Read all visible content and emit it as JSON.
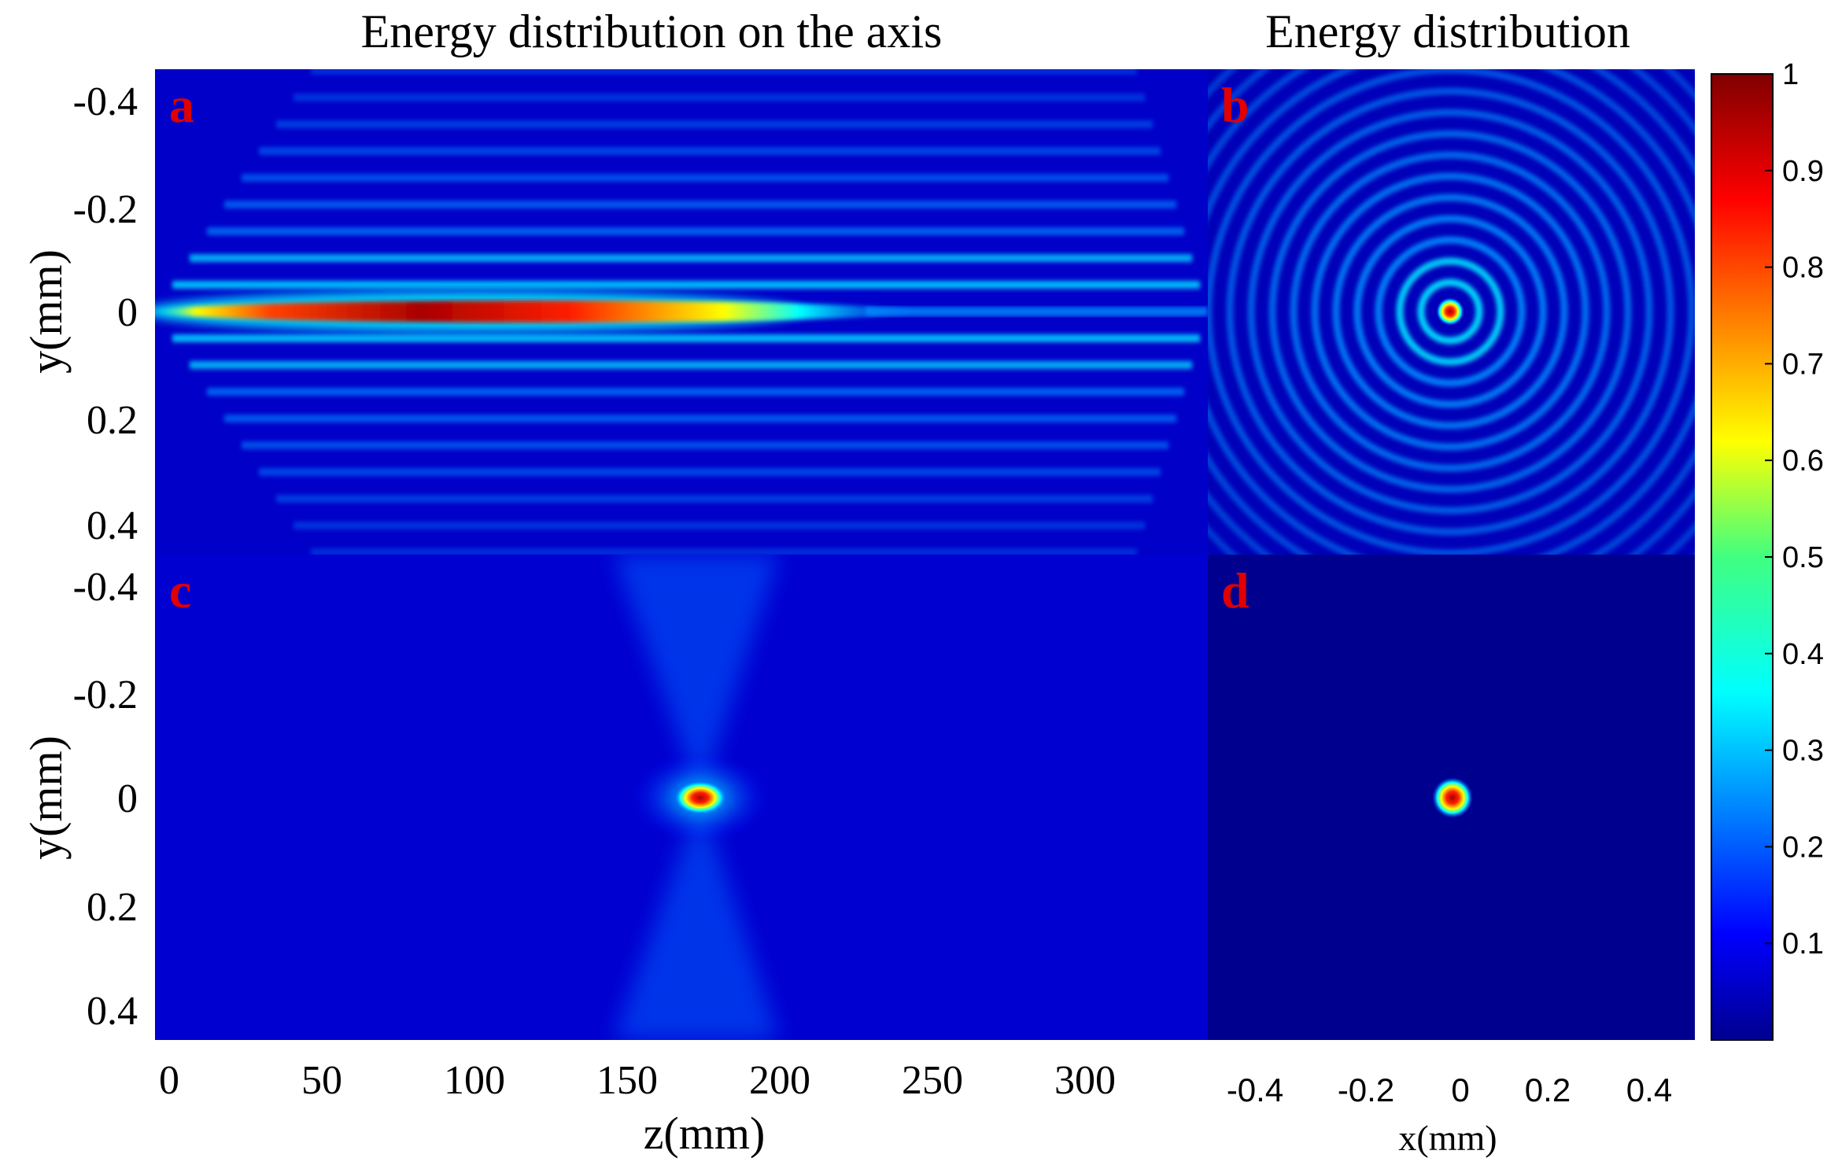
{
  "chart_data": [
    {
      "panel": "a",
      "type": "heatmap",
      "title": "Energy distribution on the axis",
      "xlabel": "",
      "ylabel": "y(mm)",
      "xlim": [
        0,
        340
      ],
      "ylim": [
        -0.45,
        0.45
      ],
      "yticks": [
        -0.4,
        -0.2,
        0,
        0.2,
        0.4
      ],
      "ytick_labels": [
        "-0.4",
        "-0.2",
        "0",
        "0.2",
        "0.4"
      ],
      "description": "Elongated Bessel-like focal line along z=0-250 with peak value 1 near z=100, side lobes parallel to axis"
    },
    {
      "panel": "b",
      "type": "heatmap",
      "title": "Energy distribution",
      "xlabel": "",
      "ylabel": "",
      "xlim": [
        -0.5,
        0.5
      ],
      "ylim": [
        -0.5,
        0.5
      ],
      "description": "Concentric ring pattern with central peak"
    },
    {
      "panel": "c",
      "type": "heatmap",
      "title": "",
      "xlabel": "z(mm)",
      "ylabel": "y(mm)",
      "xlim": [
        0,
        340
      ],
      "ylim": [
        -0.45,
        0.45
      ],
      "xticks": [
        0,
        50,
        100,
        150,
        200,
        250,
        300
      ],
      "xtick_labels": [
        "0",
        "50",
        "100",
        "150",
        "200",
        "250",
        "300"
      ],
      "yticks": [
        -0.4,
        -0.2,
        0,
        0.2,
        0.4
      ],
      "ytick_labels": [
        "-0.4",
        "-0.2",
        "0",
        "0.2",
        "0.4"
      ],
      "description": "Tight focal spot at z around 175 mm"
    },
    {
      "panel": "d",
      "type": "heatmap",
      "title": "",
      "xlabel": "x(mm)",
      "ylabel": "",
      "xlim": [
        -0.5,
        0.5
      ],
      "ylim": [
        -0.5,
        0.5
      ],
      "xticks": [
        -0.4,
        -0.2,
        0,
        0.2,
        0.4
      ],
      "xtick_labels": [
        "-0.4",
        "-0.2",
        "0",
        "0.2",
        "0.4"
      ],
      "description": "Single small focal spot at center"
    },
    {
      "panel": "colorbar",
      "type": "colorbar",
      "colormap": "jet",
      "range": [
        0,
        1
      ],
      "ticks": [
        0.1,
        0.2,
        0.3,
        0.4,
        0.5,
        0.6,
        0.7,
        0.8,
        0.9,
        1
      ],
      "tick_labels": [
        "0.1",
        "0.2",
        "0.3",
        "0.4",
        "0.5",
        "0.6",
        "0.7",
        "0.8",
        "0.9",
        "1"
      ]
    }
  ],
  "panel_letters": {
    "a": "a",
    "b": "b",
    "c": "c",
    "d": "d"
  },
  "colors": {
    "background": "#00008f",
    "text": "#000000",
    "panel_letter": "#e00000"
  }
}
